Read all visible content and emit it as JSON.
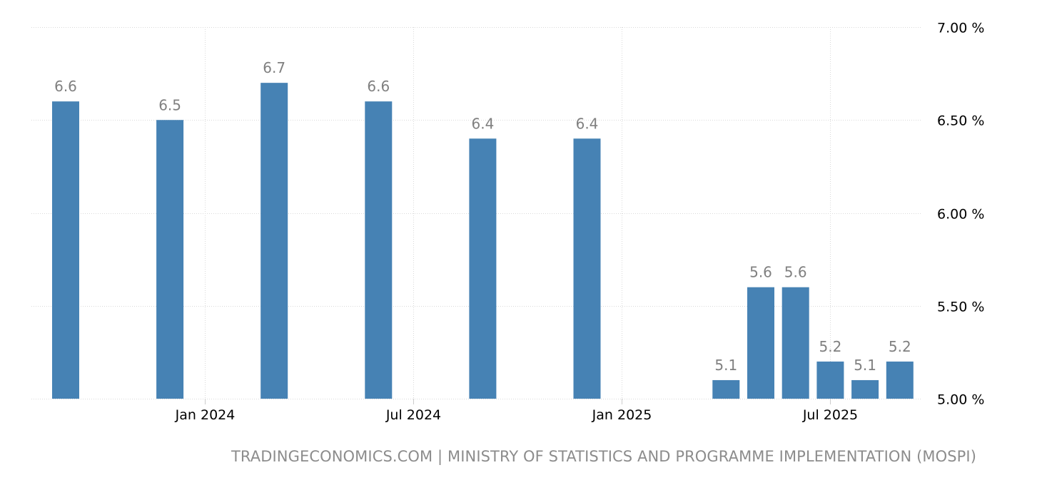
{
  "chart_data": {
    "type": "bar",
    "title": "",
    "xlabel": "",
    "ylabel": "",
    "categories": [
      "Sep 2023",
      "Dec 2023",
      "Mar 2024",
      "Jun 2024",
      "Sep 2024",
      "Dec 2024",
      "Apr 2025",
      "May 2025",
      "Jun 2025",
      "Jul 2025",
      "Aug 2025",
      "Sep 2025"
    ],
    "values": [
      6.6,
      6.5,
      6.7,
      6.6,
      6.4,
      6.4,
      5.1,
      5.6,
      5.6,
      5.2,
      5.1,
      5.2
    ],
    "data_labels": [
      "6.6",
      "6.5",
      "6.7",
      "6.6",
      "6.4",
      "6.4",
      "5.1",
      "5.6",
      "5.6",
      "5.2",
      "5.1",
      "5.2"
    ],
    "ylim": [
      5.0,
      7.0
    ],
    "y_ticks": [
      {
        "value": 5.0,
        "label": "5.00 %"
      },
      {
        "value": 5.5,
        "label": "5.50 %"
      },
      {
        "value": 6.0,
        "label": "6.00 %"
      },
      {
        "value": 6.5,
        "label": "6.50 %"
      },
      {
        "value": 7.0,
        "label": "7.00 %"
      }
    ],
    "x_ticks": [
      {
        "date": "Jan 2024",
        "label": "Jan 2024"
      },
      {
        "date": "Jul 2024",
        "label": "Jul 2024"
      },
      {
        "date": "Jan 2025",
        "label": "Jan 2025"
      },
      {
        "date": "Jul 2025",
        "label": "Jul 2025"
      }
    ],
    "y_axis_position": "right",
    "grid": true,
    "bar_color": "#4682b4",
    "label_color": "#808080"
  },
  "footer": {
    "source": "TRADINGECONOMICS.COM | MINISTRY OF STATISTICS AND PROGRAMME IMPLEMENTATION (MOSPI)"
  }
}
